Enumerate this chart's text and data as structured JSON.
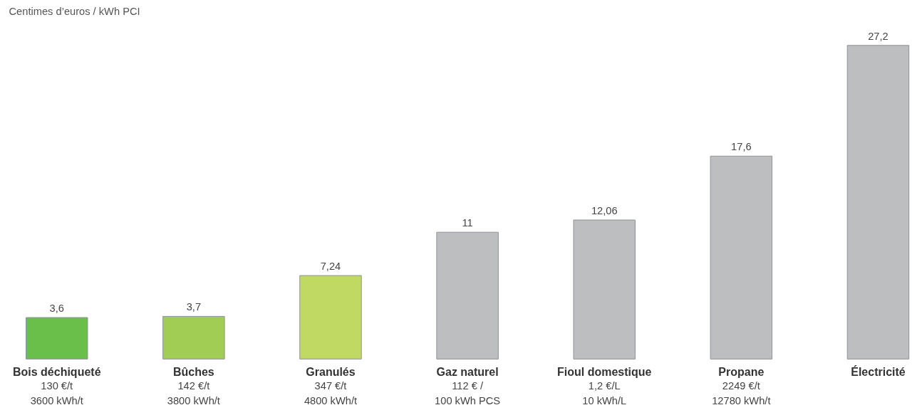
{
  "chart_data": {
    "type": "bar",
    "ylabel": "Centimes d’euros / kWh PCI",
    "categories": [
      "Bois déchiqueté\n130 €/t\n3600 kWh/t",
      "Bûches\n142 €/t\n3800 kWh/t",
      "Granulés\n347 €/t\n4800 kWh/t",
      "Gaz naturel\n112 € /\n100 kWh PCS",
      "Fioul domestique\n1,2 €/L\n10 kWh/L",
      "Propane\n2249 €/t\n12780 kWh/t",
      "Électricité"
    ],
    "values": [
      3.6,
      3.7,
      7.24,
      11,
      12.06,
      17.6,
      27.2
    ],
    "colors": [
      "#6abf4b",
      "#a2cd55",
      "#bfd962",
      "#bcbec0",
      "#bcbec0",
      "#bcbec0",
      "#bcbec0"
    ],
    "value_labels": [
      "3,6",
      "3,7",
      "7,24",
      "11",
      "12,06",
      "17,6",
      "27,2"
    ],
    "grid": false
  }
}
